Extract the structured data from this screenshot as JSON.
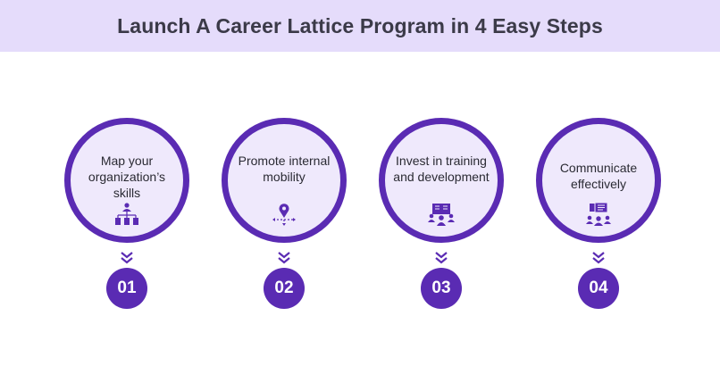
{
  "header": {
    "title": "Launch A Career Lattice Program in 4 Easy Steps"
  },
  "colors": {
    "accent": "#5a2bb3",
    "header_bg": "#e5dcfb",
    "circle_fill": "#efe9fc"
  },
  "steps": [
    {
      "number": "01",
      "label": "Map your organization’s skills",
      "icon": "org-chart-icon"
    },
    {
      "number": "02",
      "label": "Promote internal mobility",
      "icon": "location-pin-arrows-icon"
    },
    {
      "number": "03",
      "label": "Invest in training and development",
      "icon": "training-group-icon"
    },
    {
      "number": "04",
      "label": "Communicate effectively",
      "icon": "chat-group-icon"
    }
  ]
}
